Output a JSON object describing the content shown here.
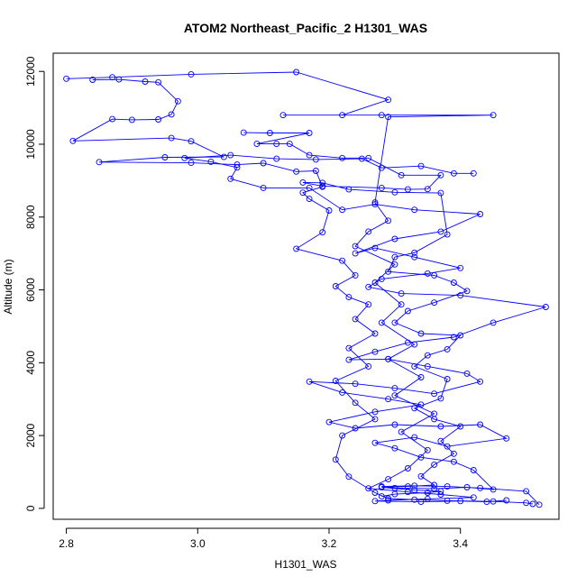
{
  "chart_data": {
    "type": "scatter",
    "title": "ATOM2 Northeast_Pacific_2 H1301_WAS",
    "xlabel": "H1301_WAS",
    "ylabel": "Altitude (m)",
    "xlim": [
      2.78,
      3.55
    ],
    "ylim": [
      -300,
      12500
    ],
    "xticks": [
      2.8,
      3.0,
      3.2,
      3.4
    ],
    "xtick_labels": [
      "2.8",
      "3.0",
      "3.2",
      "3.4"
    ],
    "yticks": [
      0,
      2000,
      4000,
      6000,
      8000,
      10000,
      12000
    ],
    "ytick_labels": [
      "0",
      "2000",
      "4000",
      "6000",
      "8000",
      "10000",
      "12000"
    ],
    "grid": false,
    "legend": "none",
    "line_color": "#0000ff",
    "marker": "open-circle",
    "series": [
      {
        "values": [
          [
            3.52,
            100
          ],
          [
            3.5,
            470
          ],
          [
            3.43,
            560
          ],
          [
            3.38,
            600
          ],
          [
            3.33,
            620
          ],
          [
            3.28,
            600
          ],
          [
            3.3,
            560
          ],
          [
            3.36,
            540
          ],
          [
            3.41,
            580
          ],
          [
            3.45,
            520
          ],
          [
            3.42,
            1050
          ],
          [
            3.39,
            1280
          ],
          [
            3.34,
            1400
          ],
          [
            3.3,
            1650
          ],
          [
            3.27,
            1800
          ],
          [
            3.33,
            1950
          ],
          [
            3.38,
            1700
          ],
          [
            3.47,
            1920
          ],
          [
            3.43,
            2300
          ],
          [
            3.37,
            2250
          ],
          [
            3.3,
            2300
          ],
          [
            3.24,
            2200
          ],
          [
            3.2,
            2370
          ],
          [
            3.27,
            2650
          ],
          [
            3.34,
            2850
          ],
          [
            3.29,
            3000
          ],
          [
            3.22,
            3180
          ],
          [
            3.17,
            3480
          ],
          [
            3.24,
            3420
          ],
          [
            3.3,
            3300
          ],
          [
            3.36,
            3150
          ],
          [
            3.43,
            3480
          ],
          [
            3.41,
            3700
          ],
          [
            3.35,
            3900
          ],
          [
            3.29,
            4100
          ],
          [
            3.23,
            4080
          ],
          [
            3.27,
            4300
          ],
          [
            3.32,
            4550
          ],
          [
            3.39,
            4700
          ],
          [
            3.45,
            5100
          ],
          [
            3.53,
            5530
          ],
          [
            3.4,
            5850
          ],
          [
            3.31,
            5900
          ],
          [
            3.26,
            6080
          ],
          [
            3.28,
            6300
          ],
          [
            3.35,
            6450
          ],
          [
            3.4,
            6600
          ],
          [
            3.33,
            6900
          ],
          [
            3.27,
            7150
          ],
          [
            3.24,
            7000
          ],
          [
            3.3,
            7400
          ],
          [
            3.37,
            7600
          ],
          [
            3.43,
            8080
          ],
          [
            3.33,
            8200
          ],
          [
            3.27,
            8350
          ],
          [
            3.22,
            8200
          ],
          [
            3.17,
            8800
          ],
          [
            3.1,
            8800
          ],
          [
            3.05,
            9050
          ],
          [
            3.06,
            9360
          ],
          [
            3.02,
            9520
          ],
          [
            2.98,
            9620
          ],
          [
            3.05,
            9700
          ],
          [
            3.12,
            9600
          ],
          [
            3.18,
            9580
          ],
          [
            3.25,
            9600
          ],
          [
            3.28,
            9350
          ],
          [
            3.34,
            9400
          ],
          [
            3.39,
            9200
          ],
          [
            3.42,
            9200
          ]
        ]
      },
      {
        "values": [
          [
            2.8,
            11800
          ],
          [
            2.87,
            11840
          ],
          [
            2.99,
            11920
          ],
          [
            3.15,
            11980
          ],
          [
            3.29,
            11220
          ],
          [
            3.22,
            10800
          ],
          [
            3.13,
            10800
          ],
          [
            3.28,
            10800
          ],
          [
            3.45,
            10800
          ],
          [
            3.29,
            10750
          ],
          [
            3.27,
            8400
          ],
          [
            3.29,
            7900
          ],
          [
            3.26,
            7600
          ],
          [
            3.24,
            7200
          ],
          [
            3.3,
            6700
          ],
          [
            3.27,
            6200
          ],
          [
            3.31,
            5600
          ],
          [
            3.28,
            5100
          ],
          [
            3.33,
            4500
          ],
          [
            3.29,
            4100
          ],
          [
            3.34,
            3600
          ],
          [
            3.3,
            3100
          ],
          [
            3.36,
            2600
          ],
          [
            3.31,
            2100
          ],
          [
            3.35,
            1600
          ],
          [
            3.32,
            1100
          ],
          [
            3.29,
            800
          ],
          [
            3.26,
            550
          ],
          [
            3.32,
            450
          ],
          [
            3.37,
            380
          ],
          [
            3.42,
            300
          ],
          [
            3.35,
            260
          ],
          [
            3.29,
            220
          ],
          [
            3.27,
            200
          ],
          [
            3.34,
            180
          ],
          [
            3.4,
            200
          ],
          [
            3.44,
            180
          ],
          [
            3.47,
            220
          ]
        ]
      },
      {
        "values": [
          [
            2.84,
            11770
          ],
          [
            2.88,
            11780
          ],
          [
            2.92,
            11720
          ],
          [
            2.94,
            11700
          ],
          [
            2.97,
            11180
          ],
          [
            2.96,
            10820
          ],
          [
            2.94,
            10680
          ],
          [
            2.9,
            10670
          ],
          [
            2.87,
            10690
          ],
          [
            2.81,
            10090
          ],
          [
            2.96,
            10170
          ],
          [
            2.99,
            10080
          ],
          [
            3.04,
            9650
          ],
          [
            2.95,
            9640
          ],
          [
            2.85,
            9510
          ],
          [
            2.99,
            9490
          ],
          [
            3.06,
            9440
          ],
          [
            3.1,
            9480
          ],
          [
            3.15,
            9250
          ],
          [
            3.18,
            9270
          ],
          [
            3.19,
            8830
          ],
          [
            3.16,
            8670
          ],
          [
            3.17,
            8500
          ],
          [
            3.2,
            8180
          ],
          [
            3.19,
            7580
          ],
          [
            3.15,
            7130
          ],
          [
            3.22,
            6800
          ],
          [
            3.24,
            6400
          ],
          [
            3.21,
            6100
          ],
          [
            3.23,
            5800
          ],
          [
            3.26,
            5600
          ],
          [
            3.24,
            5200
          ],
          [
            3.27,
            4800
          ],
          [
            3.23,
            4400
          ],
          [
            3.26,
            3900
          ],
          [
            3.21,
            3500
          ],
          [
            3.24,
            2900
          ],
          [
            3.27,
            2450
          ],
          [
            3.22,
            2000
          ],
          [
            3.21,
            1340
          ],
          [
            3.23,
            870
          ],
          [
            3.27,
            430
          ],
          [
            3.29,
            270
          ],
          [
            3.33,
            240
          ],
          [
            3.38,
            210
          ],
          [
            3.45,
            190
          ],
          [
            3.5,
            150
          ],
          [
            3.51,
            120
          ]
        ]
      },
      {
        "values": [
          [
            3.07,
            10320
          ],
          [
            3.11,
            10310
          ],
          [
            3.17,
            10310
          ],
          [
            3.09,
            10010
          ],
          [
            3.12,
            10010
          ],
          [
            3.14,
            10010
          ],
          [
            3.17,
            9700
          ],
          [
            3.22,
            9620
          ],
          [
            3.26,
            9620
          ],
          [
            3.31,
            9150
          ],
          [
            3.37,
            9150
          ],
          [
            3.35,
            8770
          ],
          [
            3.32,
            8760
          ],
          [
            3.28,
            8800
          ],
          [
            3.19,
            8850
          ],
          [
            3.16,
            8950
          ],
          [
            3.19,
            8940
          ],
          [
            3.23,
            8760
          ],
          [
            3.3,
            8680
          ],
          [
            3.37,
            8660
          ],
          [
            3.38,
            7520
          ],
          [
            3.33,
            7020
          ],
          [
            3.3,
            6900
          ],
          [
            3.29,
            6500
          ],
          [
            3.36,
            6400
          ],
          [
            3.39,
            6200
          ],
          [
            3.41,
            5970
          ],
          [
            3.36,
            5650
          ],
          [
            3.32,
            5420
          ],
          [
            3.3,
            5100
          ],
          [
            3.34,
            4800
          ],
          [
            3.4,
            4750
          ],
          [
            3.38,
            4370
          ],
          [
            3.35,
            4200
          ],
          [
            3.33,
            3900
          ],
          [
            3.38,
            3550
          ],
          [
            3.37,
            3020
          ],
          [
            3.33,
            2750
          ],
          [
            3.36,
            2450
          ],
          [
            3.4,
            2250
          ],
          [
            3.37,
            1850
          ],
          [
            3.39,
            1500
          ],
          [
            3.36,
            1200
          ],
          [
            3.34,
            880
          ],
          [
            3.36,
            640
          ],
          [
            3.32,
            600
          ],
          [
            3.28,
            580
          ],
          [
            3.33,
            500
          ],
          [
            3.37,
            470
          ],
          [
            3.35,
            430
          ],
          [
            3.3,
            390
          ],
          [
            3.28,
            330
          ]
        ]
      }
    ]
  }
}
